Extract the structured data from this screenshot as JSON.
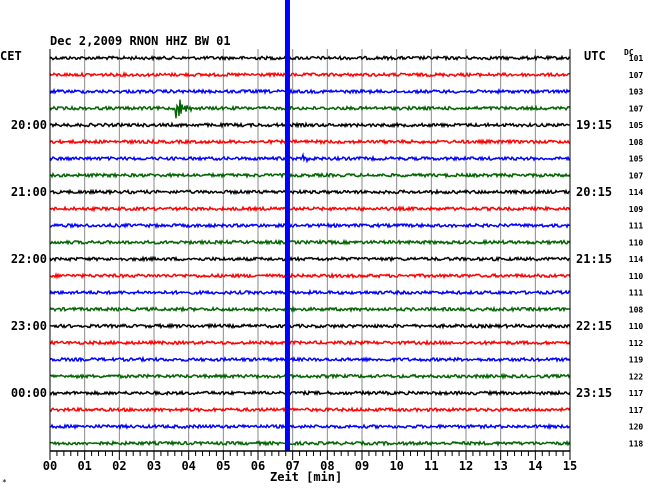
{
  "header": {
    "title": "Dec 2,2009   RNON HHZ BW 01",
    "left_axis_label": "CET",
    "right_axis_label": "UTC",
    "dc_label": "DC",
    "x_axis_label": "Zeit [min]",
    "corner_mark": "*"
  },
  "chart_data": {
    "type": "line",
    "title": "Dec 2,2009   RNON HHZ BW 01",
    "xlabel": "Zeit [min]",
    "ylabel": "CET",
    "xlim": [
      0,
      15
    ],
    "x_ticks": [
      "00",
      "01",
      "02",
      "03",
      "04",
      "05",
      "06",
      "07",
      "08",
      "09",
      "10",
      "11",
      "12",
      "13",
      "14",
      "15"
    ],
    "grid": true,
    "trace_colors": [
      "#000000",
      "#ff0000",
      "#0000ff",
      "#006400"
    ],
    "marker_color": "#0000ff",
    "marker_minute": 6.85,
    "left_time_labels": [
      {
        "trace": 4,
        "label": "20:00"
      },
      {
        "trace": 8,
        "label": "21:00"
      },
      {
        "trace": 12,
        "label": "22:00"
      },
      {
        "trace": 16,
        "label": "23:00"
      },
      {
        "trace": 20,
        "label": "00:00"
      }
    ],
    "right_time_labels": [
      {
        "trace": 4,
        "label": "19:15"
      },
      {
        "trace": 8,
        "label": "20:15"
      },
      {
        "trace": 12,
        "label": "21:15"
      },
      {
        "trace": 16,
        "label": "22:15"
      },
      {
        "trace": 20,
        "label": "23:15"
      }
    ],
    "dc_values": [
      "101",
      "107",
      "103",
      "107",
      "105",
      "108",
      "105",
      "107",
      "114",
      "109",
      "111",
      "110",
      "114",
      "110",
      "111",
      "108",
      "110",
      "112",
      "119",
      "122",
      "117",
      "117",
      "120",
      "118"
    ],
    "events": [
      {
        "trace": 3,
        "minute": 3.65,
        "amplitude": 3.5
      },
      {
        "trace": 6,
        "minute": 7.3,
        "amplitude": 0.8
      }
    ]
  }
}
